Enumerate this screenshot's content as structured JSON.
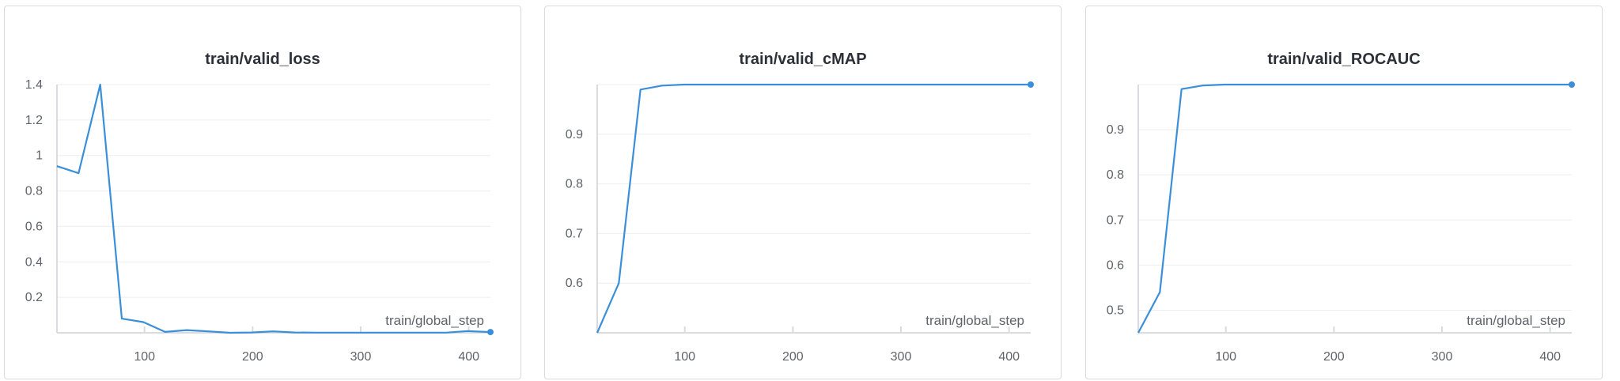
{
  "colors": {
    "series": "#3b8fd9",
    "grid": "#eceef0",
    "axis": "#d9dbde"
  },
  "chart_data": [
    {
      "type": "line",
      "title": "train/valid_loss",
      "xlabel": "train/global_step",
      "ylabel": "",
      "xlim": [
        19,
        420
      ],
      "ylim": [
        0.0,
        1.4
      ],
      "xticks": [
        100,
        200,
        300,
        400
      ],
      "yticks": [
        0.2,
        0.4,
        0.6,
        0.8,
        1,
        1.2,
        1.4
      ],
      "ytick_labels": [
        "0.2",
        "0.4",
        "0.6",
        "0.8",
        "1",
        "1.2",
        "1.4"
      ],
      "grid": true,
      "series": [
        {
          "x": [
            19,
            39,
            59,
            79,
            99,
            119,
            139,
            159,
            179,
            199,
            219,
            239,
            259,
            279,
            299,
            319,
            339,
            359,
            379,
            399,
            420
          ],
          "y": [
            0.94,
            0.9,
            1.4,
            0.08,
            0.06,
            0.005,
            0.015,
            0.008,
            0.0,
            0.002,
            0.008,
            0.002,
            0.001,
            0.001,
            0.001,
            0.001,
            0.001,
            0.001,
            0.001,
            0.01,
            0.004
          ]
        }
      ]
    },
    {
      "type": "line",
      "title": "train/valid_cMAP",
      "xlabel": "train/global_step",
      "ylabel": "",
      "xlim": [
        19,
        420
      ],
      "ylim": [
        0.5,
        1.0
      ],
      "xticks": [
        100,
        200,
        300,
        400
      ],
      "yticks": [
        0.6,
        0.7,
        0.8,
        0.9
      ],
      "ytick_labels": [
        "0.6",
        "0.7",
        "0.8",
        "0.9"
      ],
      "grid": true,
      "series": [
        {
          "x": [
            19,
            39,
            59,
            79,
            99,
            119,
            139,
            159,
            179,
            199,
            219,
            239,
            259,
            279,
            299,
            319,
            339,
            359,
            379,
            399,
            420
          ],
          "y": [
            0.5,
            0.6,
            0.99,
            0.998,
            1.0,
            1.0,
            1.0,
            1.0,
            1.0,
            1.0,
            1.0,
            1.0,
            1.0,
            1.0,
            1.0,
            1.0,
            1.0,
            1.0,
            1.0,
            1.0,
            1.0
          ]
        }
      ]
    },
    {
      "type": "line",
      "title": "train/valid_ROCAUC",
      "xlabel": "train/global_step",
      "ylabel": "",
      "xlim": [
        19,
        420
      ],
      "ylim": [
        0.45,
        1.0
      ],
      "xticks": [
        100,
        200,
        300,
        400
      ],
      "yticks": [
        0.5,
        0.6,
        0.7,
        0.8,
        0.9
      ],
      "ytick_labels": [
        "0.5",
        "0.6",
        "0.7",
        "0.8",
        "0.9"
      ],
      "grid": true,
      "series": [
        {
          "x": [
            19,
            39,
            59,
            79,
            99,
            119,
            139,
            159,
            179,
            199,
            219,
            239,
            259,
            279,
            299,
            319,
            339,
            359,
            379,
            399,
            420
          ],
          "y": [
            0.45,
            0.54,
            0.99,
            0.998,
            1.0,
            1.0,
            1.0,
            1.0,
            1.0,
            1.0,
            1.0,
            1.0,
            1.0,
            1.0,
            1.0,
            1.0,
            1.0,
            1.0,
            1.0,
            1.0,
            1.0
          ]
        }
      ]
    }
  ]
}
